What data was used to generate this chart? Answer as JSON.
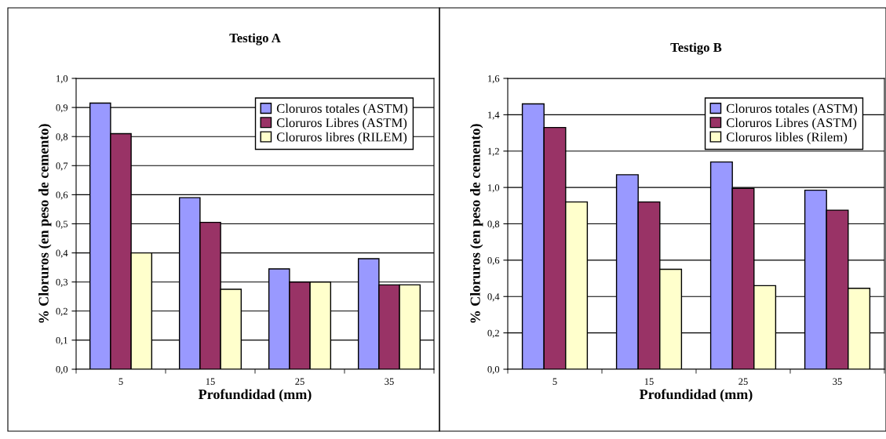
{
  "chart_data": [
    {
      "type": "bar",
      "title": "Testigo A",
      "xlabel": "Profundidad (mm)",
      "ylabel": "% Cloruros (en peso de cemento)",
      "categories": [
        "5",
        "15",
        "25",
        "35"
      ],
      "series": [
        {
          "name": "Cloruros totales (ASTM)",
          "color": "#9999ff",
          "values": [
            0.915,
            0.59,
            0.345,
            0.38
          ]
        },
        {
          "name": "Cloruros Libres (ASTM)",
          "color": "#993366",
          "values": [
            0.81,
            0.505,
            0.3,
            0.29
          ]
        },
        {
          "name": "Cloruros libres (RILEM)",
          "color": "#ffffcc",
          "values": [
            0.4,
            0.275,
            0.3,
            0.29
          ]
        }
      ],
      "ylim": [
        0,
        1.0
      ],
      "yticks": [
        {
          "value": 0,
          "label": "0,0"
        },
        {
          "value": 0.1,
          "label": "0,1"
        },
        {
          "value": 0.2,
          "label": "0,2"
        },
        {
          "value": 0.3,
          "label": "0,3"
        },
        {
          "value": 0.4,
          "label": "0,4"
        },
        {
          "value": 0.5,
          "label": "0,5"
        },
        {
          "value": 0.6,
          "label": "0,6"
        },
        {
          "value": 0.7,
          "label": "0,7"
        },
        {
          "value": 0.8,
          "label": "0,8"
        },
        {
          "value": 0.9,
          "label": "0,9"
        },
        {
          "value": 1.0,
          "label": "1,0"
        }
      ],
      "grid": "y",
      "legend": "top right"
    },
    {
      "type": "bar",
      "title": "Testigo B",
      "xlabel": "Profundidad (mm)",
      "ylabel": "% Cloruros (en peso de cemento)",
      "categories": [
        "5",
        "15",
        "25",
        "35"
      ],
      "series": [
        {
          "name": "Cloruros totales (ASTM)",
          "color": "#9999ff",
          "values": [
            1.46,
            1.07,
            1.14,
            0.985
          ]
        },
        {
          "name": "Cloruros Libres (ASTM)",
          "color": "#993366",
          "values": [
            1.33,
            0.92,
            0.995,
            0.875
          ]
        },
        {
          "name": "Cloruros libles (Rilem)",
          "color": "#ffffcc",
          "values": [
            0.92,
            0.55,
            0.46,
            0.445
          ]
        }
      ],
      "ylim": [
        0,
        1.6
      ],
      "yticks": [
        {
          "value": 0,
          "label": "0,0"
        },
        {
          "value": 0.2,
          "label": "0,2"
        },
        {
          "value": 0.4,
          "label": "0,4"
        },
        {
          "value": 0.6,
          "label": "0,6"
        },
        {
          "value": 0.8,
          "label": "0,8"
        },
        {
          "value": 1.0,
          "label": "1,0"
        },
        {
          "value": 1.2,
          "label": "1,2"
        },
        {
          "value": 1.4,
          "label": "1,4"
        },
        {
          "value": 1.6,
          "label": "1,6"
        }
      ],
      "grid": "y",
      "legend": "top right"
    }
  ]
}
